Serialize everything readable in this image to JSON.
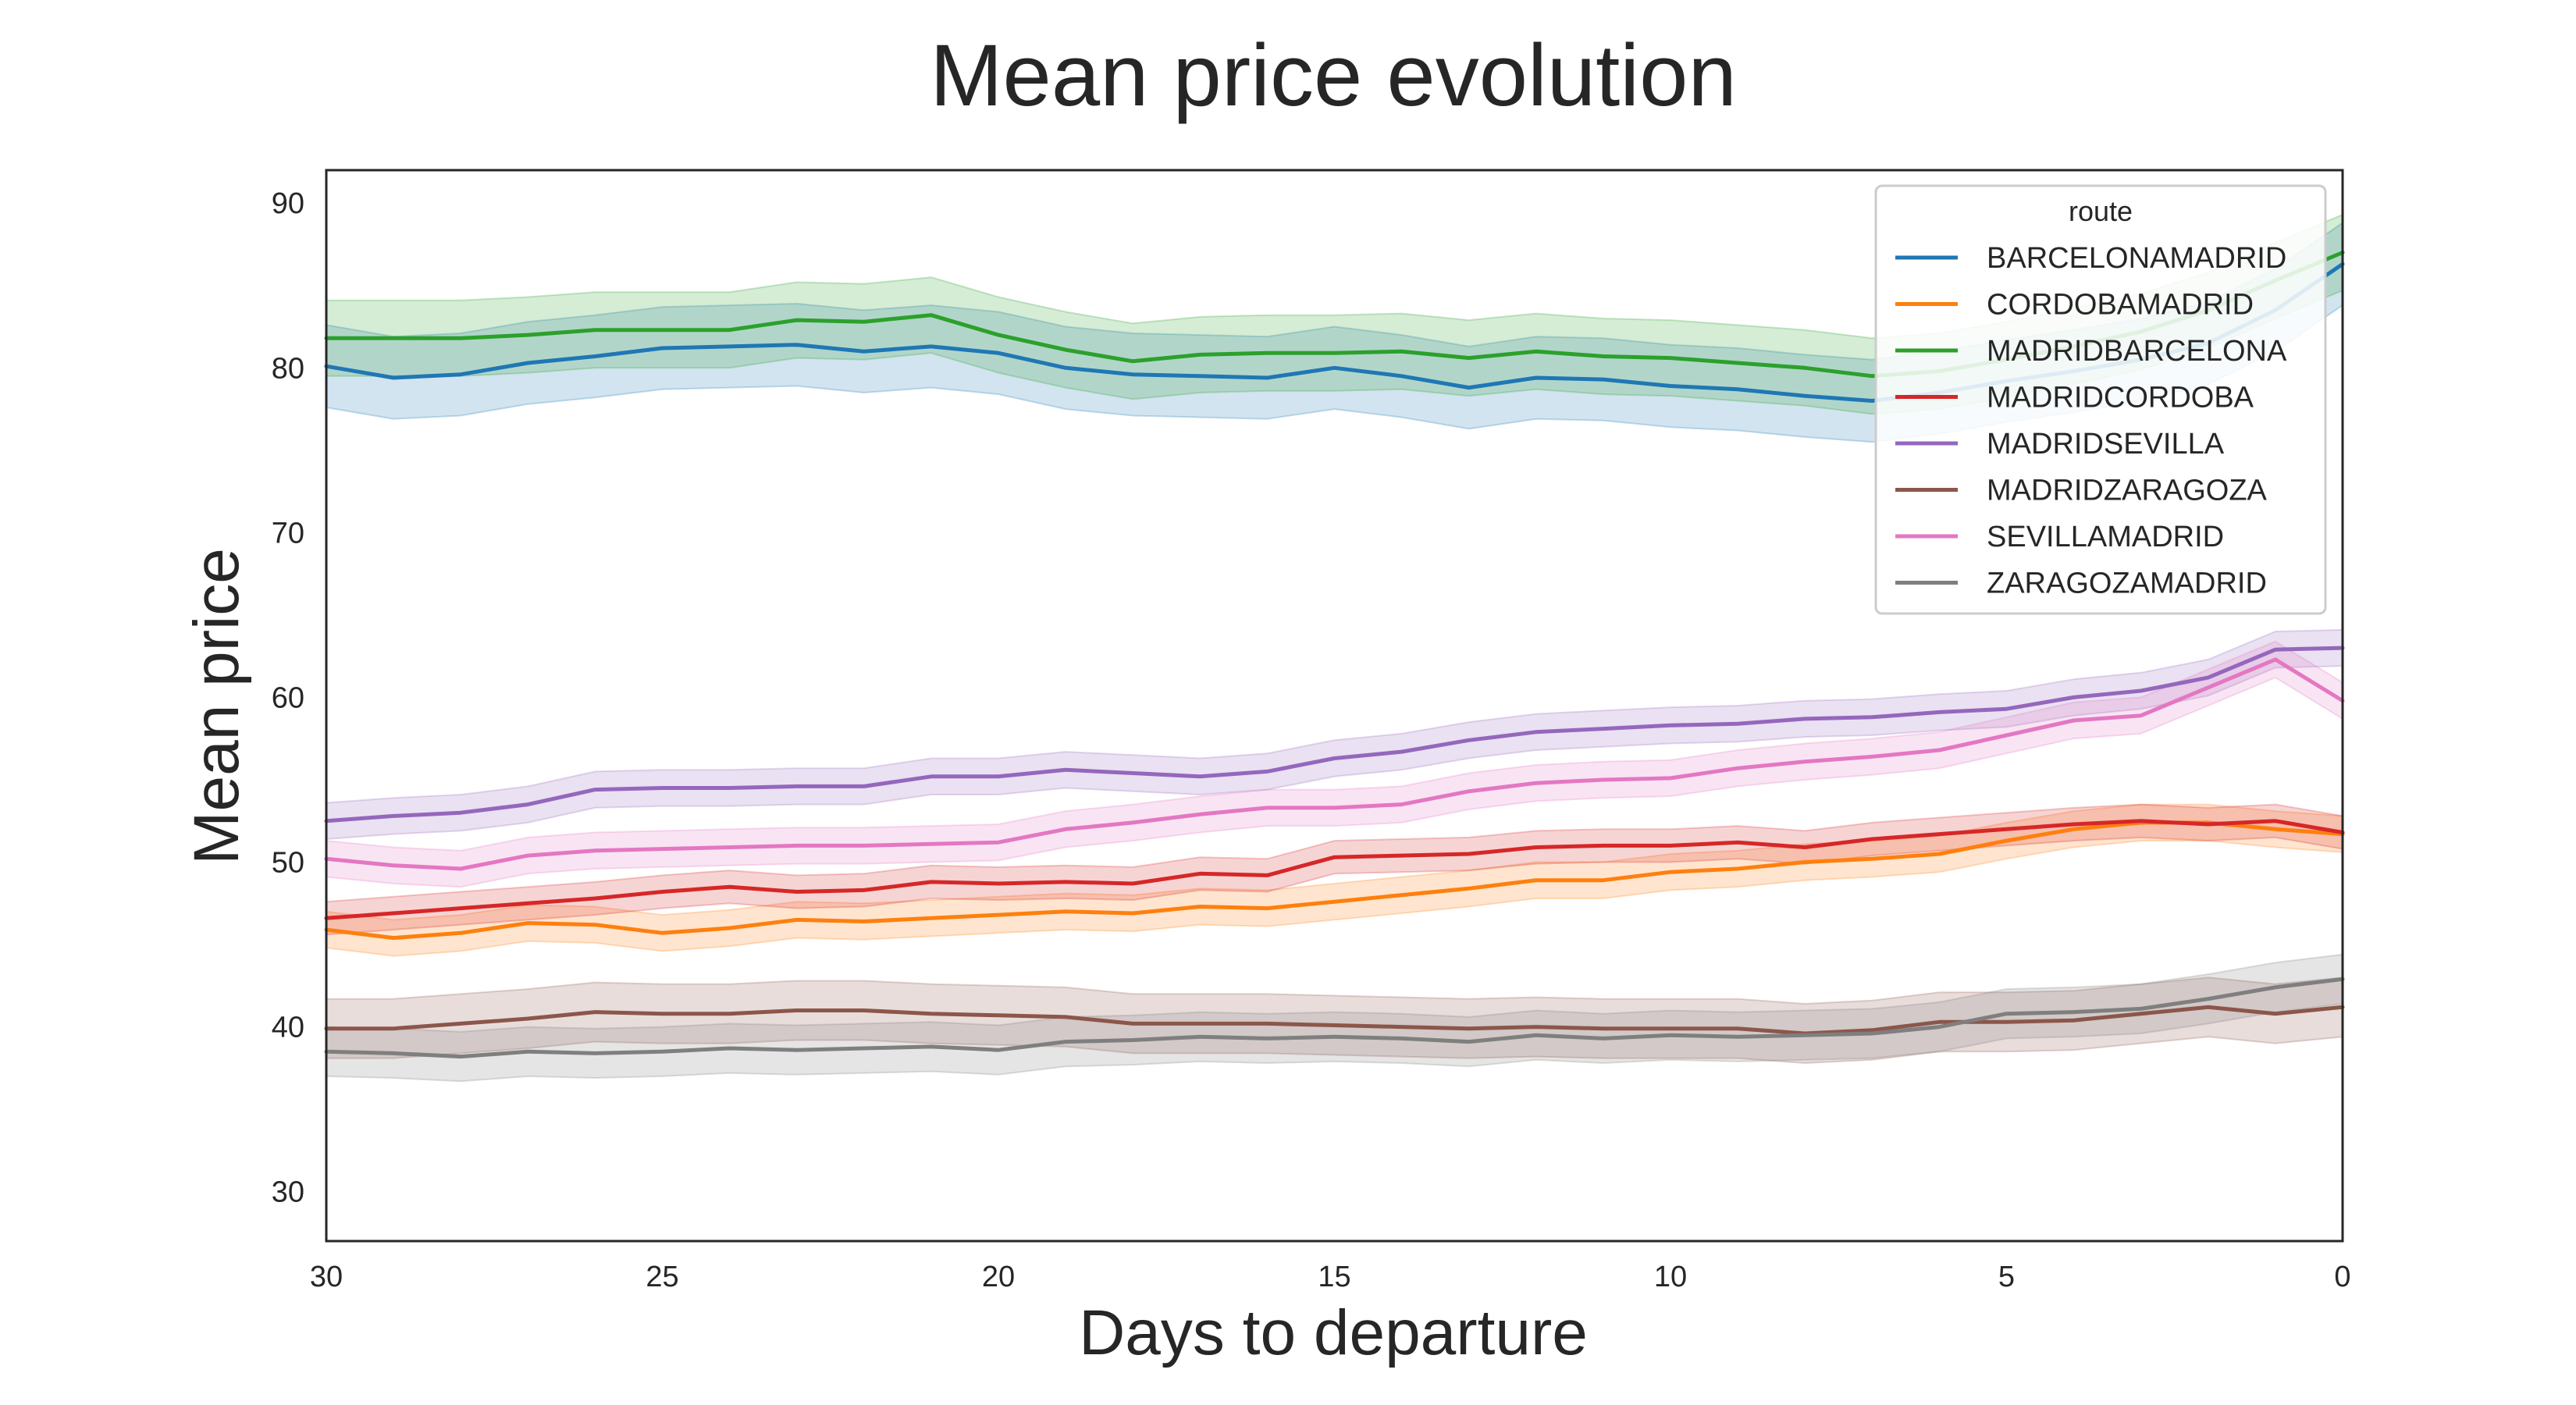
{
  "chart_data": {
    "type": "line",
    "title": "Mean price evolution",
    "xlabel": "Days to departure",
    "ylabel": "Mean price",
    "x_inverted": true,
    "xlim": [
      30,
      0
    ],
    "ylim": [
      27,
      92
    ],
    "xticks": [
      30,
      25,
      20,
      15,
      10,
      5,
      0
    ],
    "yticks": [
      30,
      40,
      50,
      60,
      70,
      80,
      90
    ],
    "grid": false,
    "legend": {
      "title": "route",
      "placement": "top-right"
    },
    "x": [
      30,
      29,
      28,
      27,
      26,
      25,
      24,
      23,
      22,
      21,
      20,
      19,
      18,
      17,
      16,
      15,
      14,
      13,
      12,
      11,
      10,
      9,
      8,
      7,
      6,
      5,
      4,
      3,
      2,
      1,
      0
    ],
    "series": [
      {
        "name": "BARCELONAMADRID",
        "color": "#1f77b4",
        "values": [
          80.1,
          79.4,
          79.6,
          80.3,
          80.7,
          81.2,
          81.3,
          81.4,
          81.0,
          81.3,
          80.9,
          80.0,
          79.6,
          79.5,
          79.4,
          80.0,
          79.5,
          78.8,
          79.4,
          79.3,
          78.9,
          78.7,
          78.3,
          78.0,
          78.5,
          79.2,
          79.8,
          80.5,
          81.5,
          83.5,
          86.3
        ],
        "ci": 2.5
      },
      {
        "name": "CORDOBAMADRID",
        "color": "#ff7f0e",
        "values": [
          45.9,
          45.4,
          45.7,
          46.3,
          46.2,
          45.7,
          46.0,
          46.5,
          46.4,
          46.6,
          46.8,
          47.0,
          46.9,
          47.3,
          47.2,
          47.6,
          48.0,
          48.4,
          48.9,
          48.9,
          49.4,
          49.6,
          50.0,
          50.2,
          50.5,
          51.3,
          52.0,
          52.4,
          52.4,
          52.0,
          51.7
        ],
        "ci": 1.1
      },
      {
        "name": "MADRIDBARCELONA",
        "color": "#2ca02c",
        "values": [
          81.8,
          81.8,
          81.8,
          82.0,
          82.3,
          82.3,
          82.3,
          82.9,
          82.8,
          83.2,
          82.0,
          81.1,
          80.4,
          80.8,
          80.9,
          80.9,
          81.0,
          80.6,
          81.0,
          80.7,
          80.6,
          80.3,
          80.0,
          79.5,
          79.8,
          80.5,
          81.3,
          82.2,
          83.5,
          85.3,
          87.0
        ],
        "ci": 2.3
      },
      {
        "name": "MADRIDCORDOBA",
        "color": "#d62728",
        "values": [
          46.6,
          46.9,
          47.2,
          47.5,
          47.8,
          48.2,
          48.5,
          48.2,
          48.3,
          48.8,
          48.7,
          48.8,
          48.7,
          49.3,
          49.2,
          50.3,
          50.4,
          50.5,
          50.9,
          51.0,
          51.0,
          51.2,
          50.9,
          51.4,
          51.7,
          52.0,
          52.3,
          52.5,
          52.3,
          52.5,
          51.8
        ],
        "ci": 1.0
      },
      {
        "name": "MADRIDSEVILLA",
        "color": "#9467bd",
        "values": [
          52.5,
          52.8,
          53.0,
          53.5,
          54.4,
          54.5,
          54.5,
          54.6,
          54.6,
          55.2,
          55.2,
          55.6,
          55.4,
          55.2,
          55.5,
          56.3,
          56.7,
          57.4,
          57.9,
          58.1,
          58.3,
          58.4,
          58.7,
          58.8,
          59.1,
          59.3,
          60.0,
          60.4,
          61.2,
          62.9,
          63.0
        ],
        "ci": 1.1
      },
      {
        "name": "MADRIDZARAGOZA",
        "color": "#8c564b",
        "values": [
          39.9,
          39.9,
          40.2,
          40.5,
          40.9,
          40.8,
          40.8,
          41.0,
          41.0,
          40.8,
          40.7,
          40.6,
          40.2,
          40.2,
          40.2,
          40.1,
          40.0,
          39.9,
          40.0,
          39.9,
          39.9,
          39.9,
          39.6,
          39.8,
          40.3,
          40.3,
          40.4,
          40.8,
          41.2,
          40.8,
          41.2
        ],
        "ci": 1.8
      },
      {
        "name": "SEVILLAMADRID",
        "color": "#e377c2",
        "values": [
          50.2,
          49.8,
          49.6,
          50.4,
          50.7,
          50.8,
          50.9,
          51.0,
          51.0,
          51.1,
          51.2,
          52.0,
          52.4,
          52.9,
          53.3,
          53.3,
          53.5,
          54.3,
          54.8,
          55.0,
          55.1,
          55.7,
          56.1,
          56.4,
          56.8,
          57.7,
          58.6,
          58.9,
          60.6,
          62.3,
          59.8
        ],
        "ci": 1.1
      },
      {
        "name": "ZARAGOZAMADRID",
        "color": "#7f7f7f",
        "values": [
          38.5,
          38.4,
          38.2,
          38.5,
          38.4,
          38.5,
          38.7,
          38.6,
          38.7,
          38.8,
          38.6,
          39.1,
          39.2,
          39.4,
          39.3,
          39.4,
          39.3,
          39.1,
          39.5,
          39.3,
          39.5,
          39.4,
          39.5,
          39.6,
          40.0,
          40.8,
          40.9,
          41.1,
          41.7,
          42.4,
          42.9
        ],
        "ci": 1.5
      }
    ]
  }
}
